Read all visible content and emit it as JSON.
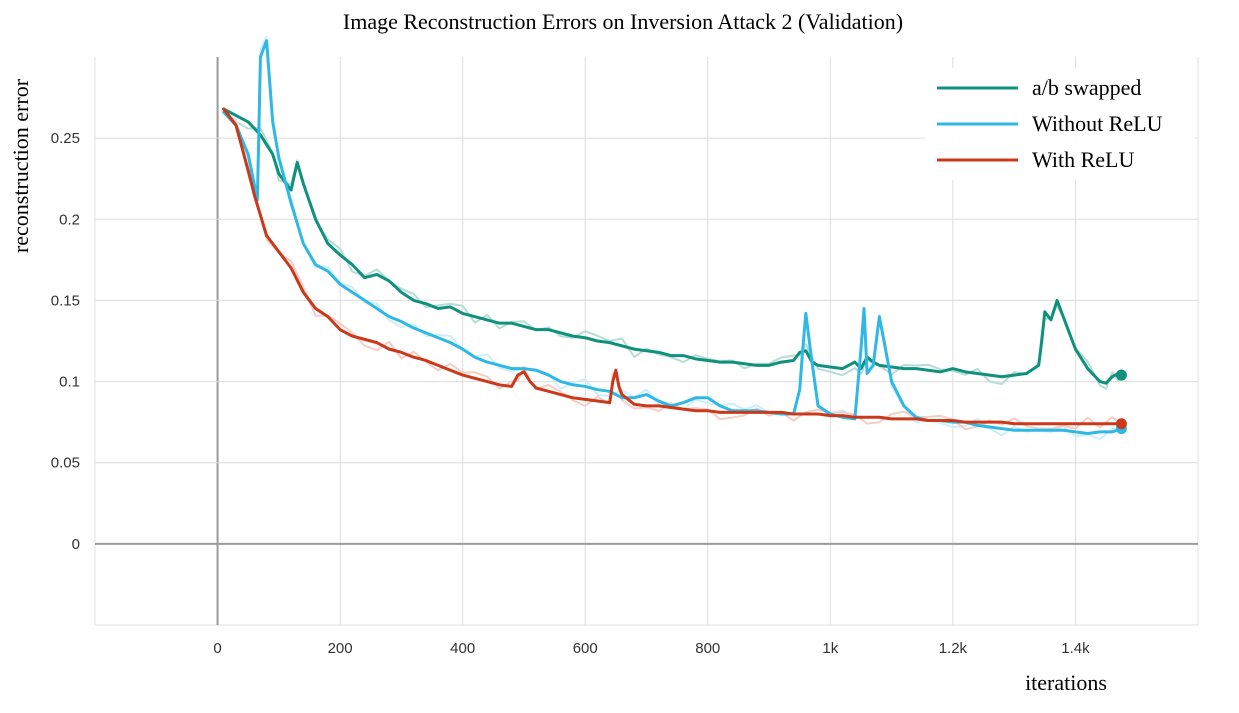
{
  "chart_data": {
    "type": "line",
    "title": "Image Reconstruction Errors on Inversion Attack 2 (Validation)",
    "xlabel": "iterations",
    "ylabel": "reconstruction error",
    "xlim": [
      -200,
      1600
    ],
    "ylim": [
      -0.05,
      0.3
    ],
    "x_ticks": [
      {
        "value": 0,
        "label": "0"
      },
      {
        "value": 200,
        "label": "200"
      },
      {
        "value": 400,
        "label": "400"
      },
      {
        "value": 600,
        "label": "600"
      },
      {
        "value": 800,
        "label": "800"
      },
      {
        "value": 1000,
        "label": "1k"
      },
      {
        "value": 1200,
        "label": "1.2k"
      },
      {
        "value": 1400,
        "label": "1.4k"
      }
    ],
    "y_ticks": [
      {
        "value": 0,
        "label": "0"
      },
      {
        "value": 0.05,
        "label": "0.05"
      },
      {
        "value": 0.1,
        "label": "0.1"
      },
      {
        "value": 0.15,
        "label": "0.15"
      },
      {
        "value": 0.2,
        "label": "0.2"
      },
      {
        "value": 0.25,
        "label": "0.25"
      }
    ],
    "grid": true,
    "legend_position": "top-right",
    "series": [
      {
        "name": "a/b swapped",
        "color": "#0f917e",
        "raw_color": "#b5ddd6",
        "x": [
          10,
          30,
          50,
          70,
          90,
          100,
          120,
          130,
          140,
          160,
          180,
          200,
          220,
          240,
          260,
          280,
          300,
          320,
          340,
          360,
          380,
          400,
          420,
          440,
          460,
          480,
          500,
          520,
          540,
          560,
          580,
          600,
          620,
          640,
          660,
          680,
          700,
          720,
          740,
          760,
          780,
          800,
          820,
          840,
          860,
          880,
          900,
          920,
          940,
          950,
          960,
          970,
          980,
          1000,
          1020,
          1040,
          1050,
          1060,
          1070,
          1080,
          1100,
          1120,
          1140,
          1160,
          1180,
          1200,
          1220,
          1240,
          1260,
          1280,
          1300,
          1320,
          1340,
          1345,
          1350,
          1360,
          1370,
          1380,
          1400,
          1420,
          1440,
          1450,
          1460,
          1470,
          1475
        ],
        "y": [
          0.268,
          0.264,
          0.26,
          0.252,
          0.24,
          0.228,
          0.218,
          0.235,
          0.222,
          0.2,
          0.185,
          0.178,
          0.172,
          0.164,
          0.166,
          0.162,
          0.155,
          0.15,
          0.148,
          0.145,
          0.146,
          0.142,
          0.14,
          0.138,
          0.136,
          0.136,
          0.134,
          0.132,
          0.132,
          0.13,
          0.128,
          0.127,
          0.125,
          0.124,
          0.122,
          0.12,
          0.119,
          0.118,
          0.116,
          0.116,
          0.114,
          0.113,
          0.112,
          0.112,
          0.111,
          0.11,
          0.11,
          0.112,
          0.113,
          0.118,
          0.119,
          0.112,
          0.11,
          0.109,
          0.108,
          0.112,
          0.108,
          0.115,
          0.112,
          0.11,
          0.109,
          0.108,
          0.108,
          0.107,
          0.106,
          0.108,
          0.106,
          0.105,
          0.104,
          0.103,
          0.104,
          0.105,
          0.11,
          0.125,
          0.143,
          0.138,
          0.15,
          0.14,
          0.12,
          0.108,
          0.1,
          0.099,
          0.103,
          0.105,
          0.104
        ]
      },
      {
        "name": "Without ReLU",
        "color": "#2fb8e6",
        "raw_color": "#cdeefa",
        "x": [
          10,
          30,
          50,
          65,
          70,
          80,
          90,
          100,
          120,
          140,
          160,
          180,
          200,
          220,
          240,
          260,
          280,
          300,
          320,
          340,
          360,
          380,
          400,
          420,
          440,
          460,
          480,
          500,
          520,
          540,
          560,
          580,
          600,
          620,
          640,
          660,
          680,
          700,
          720,
          740,
          760,
          780,
          800,
          820,
          840,
          860,
          880,
          900,
          920,
          940,
          950,
          955,
          960,
          970,
          980,
          1000,
          1020,
          1040,
          1050,
          1055,
          1060,
          1070,
          1080,
          1090,
          1100,
          1120,
          1140,
          1160,
          1180,
          1200,
          1220,
          1240,
          1260,
          1280,
          1300,
          1320,
          1340,
          1360,
          1380,
          1400,
          1420,
          1440,
          1460,
          1475
        ],
        "y": [
          0.266,
          0.258,
          0.24,
          0.212,
          0.3,
          0.31,
          0.26,
          0.238,
          0.21,
          0.185,
          0.172,
          0.168,
          0.16,
          0.155,
          0.15,
          0.145,
          0.14,
          0.137,
          0.133,
          0.13,
          0.127,
          0.124,
          0.12,
          0.115,
          0.112,
          0.11,
          0.108,
          0.108,
          0.107,
          0.104,
          0.1,
          0.098,
          0.097,
          0.095,
          0.094,
          0.09,
          0.09,
          0.092,
          0.088,
          0.085,
          0.087,
          0.09,
          0.09,
          0.085,
          0.082,
          0.082,
          0.082,
          0.081,
          0.08,
          0.08,
          0.095,
          0.12,
          0.142,
          0.112,
          0.085,
          0.08,
          0.078,
          0.077,
          0.12,
          0.145,
          0.105,
          0.11,
          0.14,
          0.12,
          0.1,
          0.085,
          0.078,
          0.076,
          0.076,
          0.075,
          0.075,
          0.073,
          0.072,
          0.071,
          0.07,
          0.07,
          0.07,
          0.07,
          0.07,
          0.069,
          0.068,
          0.069,
          0.069,
          0.071
        ]
      },
      {
        "name": "With ReLU",
        "color": "#c9391a",
        "raw_color": "#f5cdc4",
        "x": [
          10,
          30,
          50,
          60,
          80,
          100,
          120,
          140,
          160,
          180,
          200,
          220,
          240,
          260,
          280,
          300,
          320,
          340,
          360,
          380,
          400,
          420,
          440,
          460,
          480,
          490,
          500,
          510,
          520,
          540,
          560,
          580,
          600,
          620,
          640,
          645,
          650,
          655,
          660,
          680,
          700,
          720,
          740,
          760,
          780,
          800,
          820,
          840,
          860,
          880,
          900,
          920,
          940,
          960,
          980,
          1000,
          1020,
          1040,
          1060,
          1080,
          1100,
          1120,
          1140,
          1160,
          1180,
          1200,
          1220,
          1240,
          1260,
          1280,
          1300,
          1320,
          1340,
          1360,
          1380,
          1400,
          1420,
          1440,
          1460,
          1475
        ],
        "y": [
          0.268,
          0.258,
          0.23,
          0.215,
          0.19,
          0.18,
          0.17,
          0.155,
          0.145,
          0.14,
          0.132,
          0.128,
          0.126,
          0.124,
          0.12,
          0.118,
          0.115,
          0.113,
          0.11,
          0.107,
          0.104,
          0.102,
          0.1,
          0.098,
          0.097,
          0.104,
          0.106,
          0.1,
          0.096,
          0.094,
          0.092,
          0.09,
          0.089,
          0.088,
          0.087,
          0.1,
          0.107,
          0.097,
          0.092,
          0.086,
          0.085,
          0.085,
          0.084,
          0.083,
          0.082,
          0.082,
          0.081,
          0.081,
          0.081,
          0.081,
          0.081,
          0.081,
          0.08,
          0.08,
          0.08,
          0.079,
          0.079,
          0.078,
          0.078,
          0.078,
          0.077,
          0.077,
          0.077,
          0.076,
          0.076,
          0.076,
          0.075,
          0.075,
          0.075,
          0.075,
          0.074,
          0.074,
          0.074,
          0.074,
          0.074,
          0.074,
          0.074,
          0.074,
          0.074,
          0.074
        ]
      }
    ]
  }
}
